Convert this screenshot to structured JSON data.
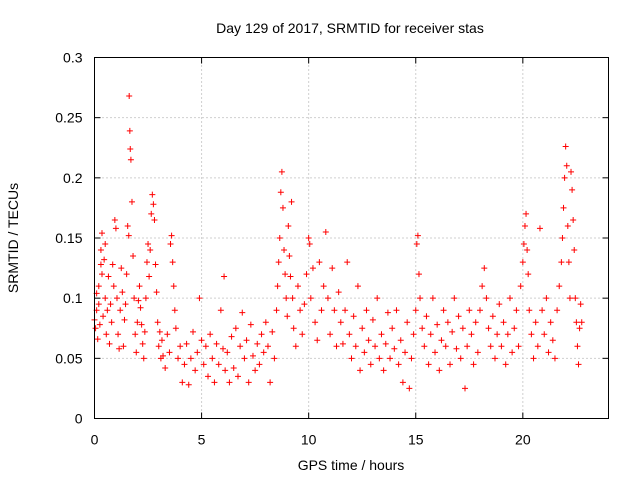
{
  "chart_data": {
    "type": "scatter",
    "title": "Day 129 of 2017, SRMTID for receiver stas",
    "xlabel": "GPS time / hours",
    "ylabel": "SRMTID / TECUs",
    "xlim": [
      0,
      24
    ],
    "ylim": [
      0,
      0.3
    ],
    "x_ticks": [
      0,
      5,
      10,
      15,
      20
    ],
    "x_tick_labels": [
      "0",
      "5",
      "10",
      "15",
      "20"
    ],
    "y_ticks": [
      0,
      0.05,
      0.1,
      0.15,
      0.2,
      0.25,
      0.3
    ],
    "y_tick_labels": [
      "0",
      "0.05",
      "0.1",
      "0.15",
      "0.2",
      "0.25",
      "0.3"
    ],
    "grid": true,
    "marker": "plus",
    "color": "#ff0000",
    "series": [
      {
        "name": "SRMTID",
        "points": [
          [
            0.0,
            0.082
          ],
          [
            0.05,
            0.075
          ],
          [
            0.1,
            0.09
          ],
          [
            0.1,
            0.104
          ],
          [
            0.15,
            0.066
          ],
          [
            0.2,
            0.095
          ],
          [
            0.2,
            0.11
          ],
          [
            0.25,
            0.078
          ],
          [
            0.3,
            0.128
          ],
          [
            0.3,
            0.14
          ],
          [
            0.35,
            0.12
          ],
          [
            0.35,
            0.154
          ],
          [
            0.4,
            0.085
          ],
          [
            0.45,
            0.132
          ],
          [
            0.5,
            0.1
          ],
          [
            0.5,
            0.145
          ],
          [
            0.55,
            0.07
          ],
          [
            0.6,
            0.09
          ],
          [
            0.65,
            0.118
          ],
          [
            0.7,
            0.062
          ],
          [
            0.75,
            0.095
          ],
          [
            0.8,
            0.08
          ],
          [
            0.85,
            0.128
          ],
          [
            0.9,
            0.11
          ],
          [
            0.95,
            0.165
          ],
          [
            1.0,
            0.158
          ],
          [
            1.05,
            0.1
          ],
          [
            1.1,
            0.07
          ],
          [
            1.15,
            0.058
          ],
          [
            1.2,
            0.09
          ],
          [
            1.25,
            0.125
          ],
          [
            1.3,
            0.105
          ],
          [
            1.35,
            0.06
          ],
          [
            1.4,
            0.082
          ],
          [
            1.45,
            0.095
          ],
          [
            1.5,
            0.12
          ],
          [
            1.55,
            0.16
          ],
          [
            1.6,
            0.152
          ],
          [
            1.62,
            0.268
          ],
          [
            1.65,
            0.239
          ],
          [
            1.67,
            0.224
          ],
          [
            1.7,
            0.215
          ],
          [
            1.75,
            0.18
          ],
          [
            1.8,
            0.135
          ],
          [
            1.85,
            0.1
          ],
          [
            1.9,
            0.07
          ],
          [
            1.95,
            0.055
          ],
          [
            2.0,
            0.08
          ],
          [
            2.05,
            0.098
          ],
          [
            2.1,
            0.11
          ],
          [
            2.15,
            0.092
          ],
          [
            2.2,
            0.078
          ],
          [
            2.25,
            0.062
          ],
          [
            2.3,
            0.05
          ],
          [
            2.35,
            0.072
          ],
          [
            2.4,
            0.1
          ],
          [
            2.45,
            0.13
          ],
          [
            2.5,
            0.145
          ],
          [
            2.55,
            0.118
          ],
          [
            2.6,
            0.14
          ],
          [
            2.65,
            0.17
          ],
          [
            2.7,
            0.186
          ],
          [
            2.75,
            0.178
          ],
          [
            2.8,
            0.165
          ],
          [
            2.85,
            0.128
          ],
          [
            2.9,
            0.105
          ],
          [
            2.95,
            0.08
          ],
          [
            3.0,
            0.06
          ],
          [
            3.05,
            0.072
          ],
          [
            3.1,
            0.05
          ],
          [
            3.15,
            0.065
          ],
          [
            3.2,
            0.052
          ],
          [
            3.3,
            0.042
          ],
          [
            3.4,
            0.07
          ],
          [
            3.5,
            0.055
          ],
          [
            3.55,
            0.145
          ],
          [
            3.6,
            0.152
          ],
          [
            3.65,
            0.13
          ],
          [
            3.7,
            0.11
          ],
          [
            3.75,
            0.09
          ],
          [
            3.8,
            0.075
          ],
          [
            3.9,
            0.05
          ],
          [
            4.0,
            0.06
          ],
          [
            4.1,
            0.03
          ],
          [
            4.2,
            0.045
          ],
          [
            4.3,
            0.062
          ],
          [
            4.4,
            0.028
          ],
          [
            4.5,
            0.05
          ],
          [
            4.6,
            0.072
          ],
          [
            4.7,
            0.04
          ],
          [
            4.8,
            0.055
          ],
          [
            4.9,
            0.1
          ],
          [
            5.0,
            0.065
          ],
          [
            5.1,
            0.045
          ],
          [
            5.2,
            0.06
          ],
          [
            5.3,
            0.035
          ],
          [
            5.4,
            0.07
          ],
          [
            5.5,
            0.05
          ],
          [
            5.6,
            0.03
          ],
          [
            5.7,
            0.062
          ],
          [
            5.8,
            0.045
          ],
          [
            5.9,
            0.09
          ],
          [
            6.0,
            0.058
          ],
          [
            6.05,
            0.118
          ],
          [
            6.1,
            0.04
          ],
          [
            6.2,
            0.055
          ],
          [
            6.3,
            0.03
          ],
          [
            6.4,
            0.068
          ],
          [
            6.5,
            0.042
          ],
          [
            6.6,
            0.075
          ],
          [
            6.7,
            0.035
          ],
          [
            6.8,
            0.06
          ],
          [
            6.9,
            0.088
          ],
          [
            7.0,
            0.05
          ],
          [
            7.1,
            0.065
          ],
          [
            7.2,
            0.03
          ],
          [
            7.3,
            0.078
          ],
          [
            7.4,
            0.052
          ],
          [
            7.5,
            0.04
          ],
          [
            7.6,
            0.062
          ],
          [
            7.7,
            0.045
          ],
          [
            7.8,
            0.07
          ],
          [
            7.9,
            0.055
          ],
          [
            8.0,
            0.08
          ],
          [
            8.1,
            0.06
          ],
          [
            8.2,
            0.03
          ],
          [
            8.3,
            0.072
          ],
          [
            8.4,
            0.05
          ],
          [
            8.5,
            0.09
          ],
          [
            8.55,
            0.11
          ],
          [
            8.6,
            0.13
          ],
          [
            8.65,
            0.15
          ],
          [
            8.7,
            0.188
          ],
          [
            8.75,
            0.205
          ],
          [
            8.8,
            0.175
          ],
          [
            8.85,
            0.14
          ],
          [
            8.9,
            0.12
          ],
          [
            8.95,
            0.1
          ],
          [
            9.0,
            0.085
          ],
          [
            9.05,
            0.16
          ],
          [
            9.1,
            0.135
          ],
          [
            9.15,
            0.118
          ],
          [
            9.2,
            0.18
          ],
          [
            9.25,
            0.1
          ],
          [
            9.3,
            0.075
          ],
          [
            9.4,
            0.06
          ],
          [
            9.5,
            0.11
          ],
          [
            9.6,
            0.09
          ],
          [
            9.7,
            0.07
          ],
          [
            9.8,
            0.095
          ],
          [
            9.9,
            0.12
          ],
          [
            10.0,
            0.15
          ],
          [
            10.05,
            0.145
          ],
          [
            10.1,
            0.1
          ],
          [
            10.2,
            0.125
          ],
          [
            10.3,
            0.08
          ],
          [
            10.4,
            0.065
          ],
          [
            10.5,
            0.13
          ],
          [
            10.6,
            0.09
          ],
          [
            10.7,
            0.11
          ],
          [
            10.8,
            0.155
          ],
          [
            10.9,
            0.1
          ],
          [
            11.0,
            0.07
          ],
          [
            11.1,
            0.125
          ],
          [
            11.2,
            0.09
          ],
          [
            11.3,
            0.06
          ],
          [
            11.4,
            0.105
          ],
          [
            11.5,
            0.08
          ],
          [
            11.6,
            0.062
          ],
          [
            11.7,
            0.09
          ],
          [
            11.8,
            0.13
          ],
          [
            11.9,
            0.07
          ],
          [
            12.0,
            0.05
          ],
          [
            12.1,
            0.085
          ],
          [
            12.2,
            0.06
          ],
          [
            12.3,
            0.11
          ],
          [
            12.4,
            0.04
          ],
          [
            12.5,
            0.075
          ],
          [
            12.6,
            0.055
          ],
          [
            12.7,
            0.09
          ],
          [
            12.8,
            0.065
          ],
          [
            12.9,
            0.045
          ],
          [
            13.0,
            0.082
          ],
          [
            13.1,
            0.06
          ],
          [
            13.2,
            0.1
          ],
          [
            13.3,
            0.05
          ],
          [
            13.4,
            0.07
          ],
          [
            13.5,
            0.04
          ],
          [
            13.6,
            0.062
          ],
          [
            13.7,
            0.088
          ],
          [
            13.8,
            0.05
          ],
          [
            13.9,
            0.075
          ],
          [
            14.0,
            0.058
          ],
          [
            14.1,
            0.09
          ],
          [
            14.2,
            0.045
          ],
          [
            14.3,
            0.065
          ],
          [
            14.4,
            0.03
          ],
          [
            14.5,
            0.055
          ],
          [
            14.6,
            0.08
          ],
          [
            14.7,
            0.025
          ],
          [
            14.8,
            0.05
          ],
          [
            14.9,
            0.07
          ],
          [
            15.0,
            0.09
          ],
          [
            15.05,
            0.145
          ],
          [
            15.1,
            0.152
          ],
          [
            15.15,
            0.12
          ],
          [
            15.2,
            0.1
          ],
          [
            15.3,
            0.075
          ],
          [
            15.4,
            0.06
          ],
          [
            15.5,
            0.085
          ],
          [
            15.6,
            0.045
          ],
          [
            15.7,
            0.07
          ],
          [
            15.8,
            0.1
          ],
          [
            15.9,
            0.055
          ],
          [
            16.0,
            0.078
          ],
          [
            16.1,
            0.04
          ],
          [
            16.2,
            0.065
          ],
          [
            16.3,
            0.09
          ],
          [
            16.4,
            0.06
          ],
          [
            16.5,
            0.08
          ],
          [
            16.6,
            0.045
          ],
          [
            16.7,
            0.072
          ],
          [
            16.8,
            0.1
          ],
          [
            16.9,
            0.058
          ],
          [
            17.0,
            0.085
          ],
          [
            17.1,
            0.05
          ],
          [
            17.2,
            0.075
          ],
          [
            17.3,
            0.025
          ],
          [
            17.4,
            0.06
          ],
          [
            17.5,
            0.09
          ],
          [
            17.6,
            0.07
          ],
          [
            17.7,
            0.045
          ],
          [
            17.8,
            0.08
          ],
          [
            17.9,
            0.055
          ],
          [
            18.0,
            0.09
          ],
          [
            18.1,
            0.11
          ],
          [
            18.2,
            0.125
          ],
          [
            18.3,
            0.1
          ],
          [
            18.4,
            0.075
          ],
          [
            18.5,
            0.06
          ],
          [
            18.6,
            0.085
          ],
          [
            18.7,
            0.05
          ],
          [
            18.8,
            0.07
          ],
          [
            18.9,
            0.095
          ],
          [
            19.0,
            0.06
          ],
          [
            19.1,
            0.08
          ],
          [
            19.2,
            0.045
          ],
          [
            19.3,
            0.07
          ],
          [
            19.4,
            0.1
          ],
          [
            19.5,
            0.055
          ],
          [
            19.6,
            0.075
          ],
          [
            19.7,
            0.09
          ],
          [
            19.8,
            0.06
          ],
          [
            19.9,
            0.11
          ],
          [
            20.0,
            0.13
          ],
          [
            20.05,
            0.145
          ],
          [
            20.1,
            0.16
          ],
          [
            20.15,
            0.17
          ],
          [
            20.2,
            0.14
          ],
          [
            20.25,
            0.12
          ],
          [
            20.3,
            0.09
          ],
          [
            20.4,
            0.07
          ],
          [
            20.5,
            0.05
          ],
          [
            20.6,
            0.08
          ],
          [
            20.7,
            0.06
          ],
          [
            20.8,
            0.158
          ],
          [
            20.9,
            0.09
          ],
          [
            21.0,
            0.07
          ],
          [
            21.1,
            0.1
          ],
          [
            21.2,
            0.055
          ],
          [
            21.3,
            0.08
          ],
          [
            21.4,
            0.065
          ],
          [
            21.5,
            0.05
          ],
          [
            21.6,
            0.09
          ],
          [
            21.7,
            0.11
          ],
          [
            21.8,
            0.13
          ],
          [
            21.85,
            0.15
          ],
          [
            21.9,
            0.175
          ],
          [
            21.95,
            0.2
          ],
          [
            22.0,
            0.226
          ],
          [
            22.05,
            0.21
          ],
          [
            22.1,
            0.16
          ],
          [
            22.15,
            0.13
          ],
          [
            22.2,
            0.1
          ],
          [
            22.25,
            0.205
          ],
          [
            22.3,
            0.19
          ],
          [
            22.35,
            0.165
          ],
          [
            22.4,
            0.14
          ],
          [
            22.45,
            0.1
          ],
          [
            22.5,
            0.08
          ],
          [
            22.55,
            0.06
          ],
          [
            22.6,
            0.045
          ],
          [
            22.65,
            0.075
          ],
          [
            22.7,
            0.095
          ],
          [
            22.75,
            0.08
          ]
        ]
      }
    ]
  }
}
